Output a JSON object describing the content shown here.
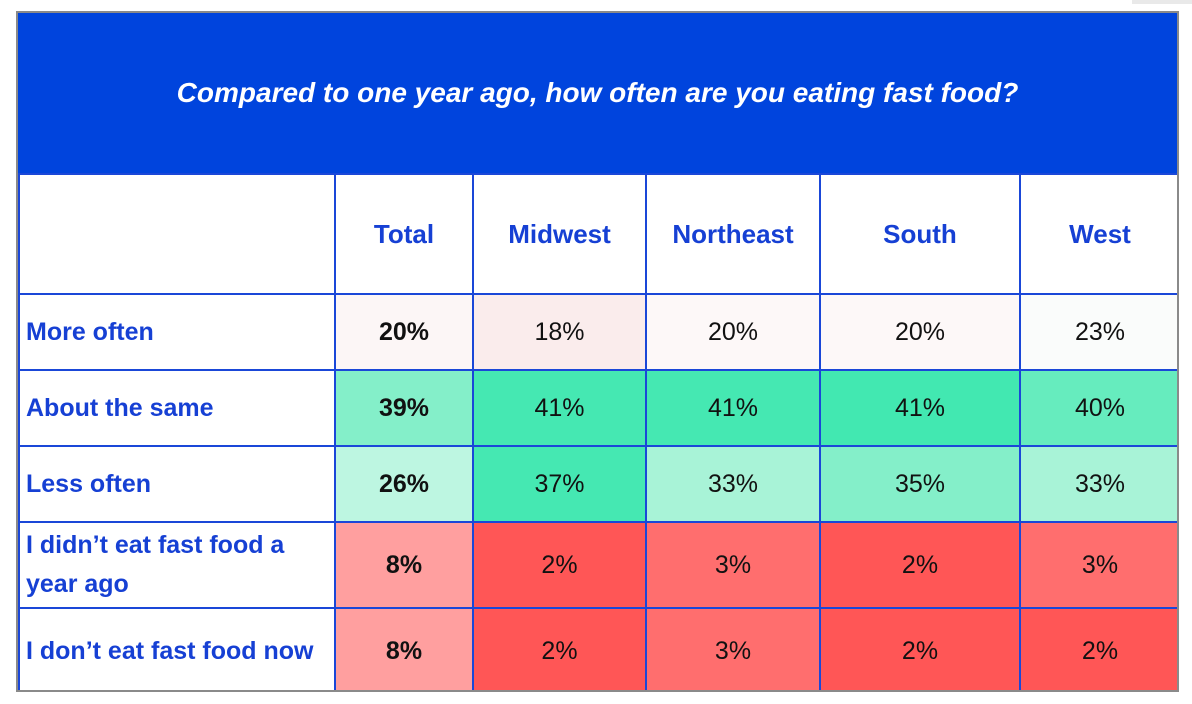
{
  "chart_data": {
    "type": "table",
    "title": "Compared to one year ago, how often are you eating fast food?",
    "columns": [
      "Total",
      "Midwest",
      "Northeast",
      "South",
      "West"
    ],
    "rows": [
      {
        "label": "More often",
        "values": [
          "20%",
          "18%",
          "20%",
          "20%",
          "23%"
        ],
        "colors": [
          "#fcf6f6",
          "#faecec",
          "#fdf8f8",
          "#fdf8f8",
          "#fafcfb"
        ]
      },
      {
        "label": "About the same",
        "values": [
          "39%",
          "41%",
          "41%",
          "41%",
          "40%"
        ],
        "colors": [
          "#84efc9",
          "#45e8b2",
          "#45e8b2",
          "#42e8b1",
          "#66ecbe"
        ]
      },
      {
        "label": "Less often",
        "values": [
          "26%",
          "37%",
          "33%",
          "35%",
          "33%"
        ],
        "colors": [
          "#bdf6e1",
          "#45e8b2",
          "#a8f3d7",
          "#84efc9",
          "#a8f3d7"
        ]
      },
      {
        "label": "I didn’t eat fast food a year ago",
        "values": [
          "8%",
          "2%",
          "3%",
          "2%",
          "3%"
        ],
        "colors": [
          "#ff9f9f",
          "#ff5656",
          "#ff6e6e",
          "#ff5656",
          "#ff6e6e"
        ]
      },
      {
        "label": "I don’t eat fast food now",
        "values": [
          "8%",
          "2%",
          "3%",
          "2%",
          "2%"
        ],
        "colors": [
          "#ff9f9f",
          "#ff5656",
          "#ff6e6e",
          "#ff5656",
          "#ff5656"
        ]
      }
    ]
  }
}
